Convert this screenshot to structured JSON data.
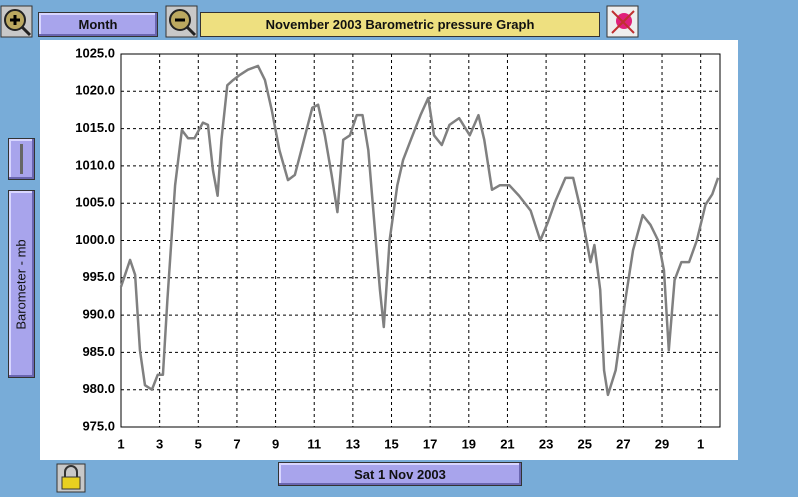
{
  "toolbar": {
    "period_button": "Month",
    "title": "November 2003 Barometric pressure Graph"
  },
  "date_button": "Sat 1 Nov 2003",
  "chart_data": {
    "type": "line",
    "y_label": "Barometer - mb",
    "x": [
      1,
      1.47,
      1.73,
      1.98,
      2.24,
      2.6,
      2.9,
      3.17,
      3.4,
      3.8,
      4.15,
      4.47,
      4.8,
      5.24,
      5.5,
      5.76,
      6.0,
      6.2,
      6.5,
      6.8,
      7.15,
      7.57,
      8.09,
      8.45,
      8.8,
      9.2,
      9.64,
      10,
      10.4,
      10.9,
      11.2,
      11.55,
      11.9,
      12.2,
      12.5,
      12.85,
      13.2,
      13.5,
      13.8,
      14.1,
      14.4,
      14.6,
      14.9,
      15.3,
      15.6,
      16,
      16.5,
      16.9,
      17.2,
      17.6,
      18,
      18.5,
      19.05,
      19.5,
      19.8,
      20.2,
      20.6,
      21.1,
      21.6,
      22.2,
      22.7,
      23.1,
      23.5,
      24,
      24.4,
      24.8,
      25.3,
      25.5,
      25.8,
      26.0,
      26.2,
      26.6,
      27.1,
      27.5,
      28,
      28.4,
      28.8,
      29.1,
      29.35,
      29.65,
      30,
      30.4,
      30.8,
      31.25,
      31.6,
      31.9
    ],
    "series": [
      {
        "color": "#808080",
        "values": [
          993.8,
          997.4,
          995.4,
          985.3,
          980.6,
          980,
          982,
          982,
          992,
          1007.4,
          1014.8,
          1013.7,
          1013.7,
          1015.8,
          1015.5,
          1009.4,
          1006,
          1013.5,
          1020.8,
          1021.5,
          1022.2,
          1022.9,
          1023.4,
          1021.5,
          1017.5,
          1012.1,
          1008.1,
          1008.8,
          1012.8,
          1017.8,
          1018.2,
          1014.1,
          1008.8,
          1003.8,
          1013.5,
          1014.1,
          1016.8,
          1016.8,
          1012.1,
          1002.7,
          993.4,
          988.4,
          1000,
          1007.4,
          1010.8,
          1013.5,
          1016.8,
          1019.1,
          1014.1,
          1012.8,
          1015.5,
          1016.4,
          1014.1,
          1016.8,
          1013.5,
          1006.8,
          1007.4,
          1007.4,
          1006,
          1004,
          1000,
          1002.5,
          1005.4,
          1008.4,
          1008.4,
          1004,
          997.1,
          999.4,
          993.4,
          982.6,
          979.3,
          982.6,
          992,
          998.7,
          1003.4,
          1002.1,
          1000,
          996,
          985.3,
          994.7,
          997.1,
          997.1,
          1000,
          1004.8,
          1006.2,
          1008.4
        ]
      }
    ],
    "xlim": [
      1,
      32
    ],
    "ylim": [
      975,
      1025
    ],
    "xticks": [
      1,
      3,
      5,
      7,
      9,
      11,
      13,
      15,
      17,
      19,
      21,
      23,
      25,
      27,
      29,
      {
        "value": 31,
        "label": "1"
      }
    ],
    "yticks": [
      {
        "value": 975,
        "label": "975.0"
      },
      {
        "value": 980,
        "label": "980.0"
      },
      {
        "value": 985,
        "label": "985.0"
      },
      {
        "value": 990,
        "label": "990.0"
      },
      {
        "value": 995,
        "label": "995.0"
      },
      {
        "value": 1000,
        "label": "1000.0"
      },
      {
        "value": 1005,
        "label": "1005.0"
      },
      {
        "value": 1010,
        "label": "1010.0"
      },
      {
        "value": 1015,
        "label": "1015.0"
      },
      {
        "value": 1020,
        "label": "1020.0"
      },
      {
        "value": 1025,
        "label": "1025.0"
      }
    ],
    "grid": true
  }
}
